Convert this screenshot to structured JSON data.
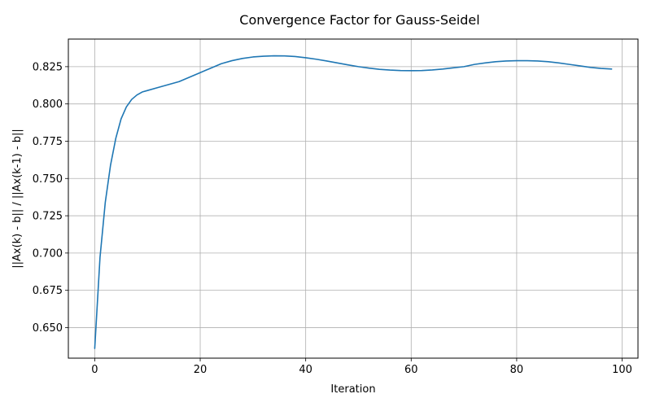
{
  "chart_data": {
    "type": "line",
    "title": "Convergence Factor for Gauss-Seidel",
    "xlabel": "Iteration",
    "ylabel": "||Ax(k) - b|| / ||Ax(k-1) - b||",
    "xlim": [
      -5,
      103
    ],
    "ylim": [
      0.6295,
      0.8435
    ],
    "xticks": [
      0,
      20,
      40,
      60,
      80,
      100
    ],
    "xtick_labels": [
      "0",
      "20",
      "40",
      "60",
      "80",
      "100"
    ],
    "yticks": [
      0.65,
      0.675,
      0.7,
      0.725,
      0.75,
      0.775,
      0.8,
      0.825
    ],
    "ytick_labels": [
      "0.650",
      "0.675",
      "0.700",
      "0.725",
      "0.750",
      "0.775",
      "0.800",
      "0.825"
    ],
    "grid": true,
    "line_color": "#1f77b4",
    "series": [
      {
        "x": [
          0,
          1,
          2,
          3,
          4,
          5,
          6,
          7,
          8,
          9,
          10,
          12,
          14,
          16,
          18,
          20,
          22,
          24,
          26,
          28,
          30,
          32,
          34,
          36,
          38,
          40,
          42,
          44,
          46,
          48,
          50,
          52,
          54,
          56,
          58,
          60,
          62,
          64,
          66,
          68,
          70,
          72,
          74,
          76,
          78,
          80,
          82,
          84,
          86,
          88,
          90,
          92,
          94,
          96,
          98
        ],
        "y": [
          0.636,
          0.697,
          0.734,
          0.759,
          0.777,
          0.79,
          0.798,
          0.803,
          0.806,
          0.808,
          0.809,
          0.811,
          0.813,
          0.815,
          0.818,
          0.821,
          0.824,
          0.827,
          0.829,
          0.8305,
          0.8315,
          0.832,
          0.8323,
          0.8322,
          0.8318,
          0.831,
          0.83,
          0.8288,
          0.8275,
          0.8262,
          0.825,
          0.824,
          0.8232,
          0.8227,
          0.8224,
          0.8223,
          0.8224,
          0.8228,
          0.8234,
          0.8242,
          0.825,
          0.8265,
          0.8275,
          0.8283,
          0.8288,
          0.829,
          0.829,
          0.8288,
          0.8283,
          0.8275,
          0.8265,
          0.8255,
          0.8245,
          0.8238,
          0.8234
        ]
      }
    ]
  }
}
